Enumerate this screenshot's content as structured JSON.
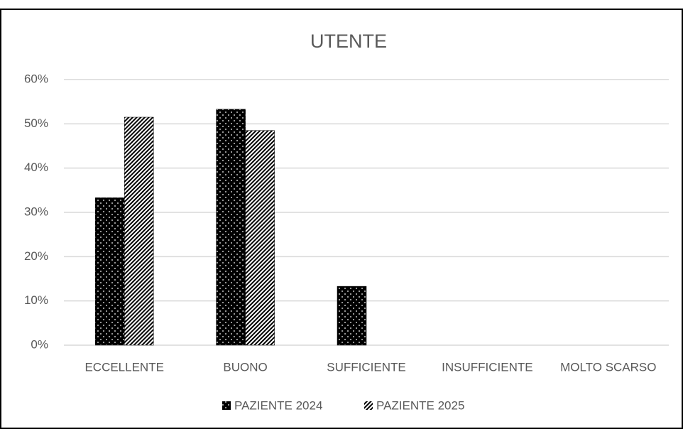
{
  "chart_data": {
    "type": "bar",
    "title": "UTENTE",
    "categories": [
      "ECCELLENTE",
      "BUONO",
      "SUFFICIENTE",
      "INSUFFICIENTE",
      "MOLTO SCARSO"
    ],
    "series": [
      {
        "name": "PAZIENTE 2024",
        "color": "#000000",
        "values": [
          33.3,
          53.3,
          13.3,
          0,
          0
        ]
      },
      {
        "name": "PAZIENTE 2025",
        "color": "#000000",
        "values": [
          51.5,
          48.5,
          0,
          0,
          0
        ]
      }
    ],
    "ylim": [
      0,
      60
    ],
    "yticks": [
      {
        "value": 0,
        "label": "0%"
      },
      {
        "value": 10,
        "label": "10%"
      },
      {
        "value": 20,
        "label": "20%"
      },
      {
        "value": 30,
        "label": "30%"
      },
      {
        "value": 40,
        "label": "40%"
      },
      {
        "value": 50,
        "label": "50%"
      },
      {
        "value": 60,
        "label": "60%"
      }
    ],
    "grid": true,
    "legend": "bottom"
  }
}
